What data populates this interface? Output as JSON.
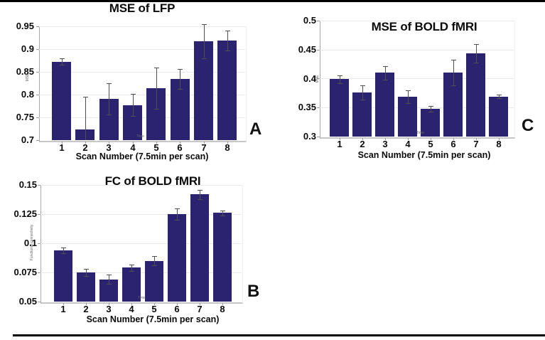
{
  "figure": {
    "background": "#ffffff",
    "top_border_color": "#000000",
    "bottom_border_color": "#000000"
  },
  "colors": {
    "bar": "#2b2370",
    "error_bar": "#4f4f4f",
    "grid": "#e9e9e9",
    "axis": "#a9a9a9",
    "text": "#0a0a0a",
    "tiny_text": "#666666"
  },
  "chart_data": [
    {
      "id": "mse-lfp",
      "type": "bar",
      "panel_letter": "A",
      "title": "MSE of LFP",
      "xlabel": "Scan Number (7.5min per scan)",
      "xlabel_small": "Time",
      "ylabel_small": "MSE",
      "categories": [
        "1",
        "2",
        "3",
        "4",
        "5",
        "6",
        "7",
        "8"
      ],
      "values": [
        0.872,
        0.723,
        0.791,
        0.777,
        0.814,
        0.834,
        0.917,
        0.919
      ],
      "errors": [
        0.007,
        0.072,
        0.034,
        0.024,
        0.046,
        0.022,
        0.037,
        0.022
      ],
      "ylim": [
        0.7,
        0.95
      ],
      "yticks": [
        0.95,
        0.9,
        0.85,
        0.8,
        0.75,
        0.7
      ],
      "ytick_labels": [
        "0.95",
        "0.9",
        "0.85",
        "0.8",
        "0.75",
        "0.7"
      ],
      "grid": true,
      "legend": false
    },
    {
      "id": "mse-bold-fmri",
      "type": "bar",
      "panel_letter": "C",
      "title": "MSE of BOLD fMRI",
      "xlabel": "Scan Number (7.5min per scan)",
      "xlabel_small": "Time",
      "ylabel_small": "MSE",
      "categories": [
        "1",
        "2",
        "3",
        "4",
        "5",
        "6",
        "7",
        "8"
      ],
      "values": [
        0.399,
        0.376,
        0.41,
        0.369,
        0.348,
        0.41,
        0.444,
        0.369
      ],
      "errors": [
        0.007,
        0.012,
        0.012,
        0.011,
        0.005,
        0.022,
        0.016,
        0.003
      ],
      "ylim": [
        0.3,
        0.5
      ],
      "yticks": [
        0.5,
        0.45,
        0.4,
        0.35,
        0.3
      ],
      "ytick_labels": [
        "0.5",
        "0.45",
        "0.4",
        "0.35",
        "0.3"
      ],
      "grid": true,
      "legend": false
    },
    {
      "id": "fc-bold-fmri",
      "type": "bar",
      "panel_letter": "B",
      "title": "FC of BOLD fMRI",
      "xlabel": "Scan Number (7.5min per scan)",
      "xlabel_small": "Time",
      "ylabel_small": "Functional connectivity",
      "categories": [
        "1",
        "2",
        "3",
        "4",
        "5",
        "6",
        "7",
        "8"
      ],
      "values": [
        0.094,
        0.075,
        0.069,
        0.079,
        0.085,
        0.125,
        0.142,
        0.126
      ],
      "errors": [
        0.0025,
        0.003,
        0.004,
        0.003,
        0.004,
        0.005,
        0.004,
        0.002
      ],
      "ylim": [
        0.05,
        0.15
      ],
      "yticks": [
        0.15,
        0.125,
        0.1,
        0.075,
        0.05
      ],
      "ytick_labels": [
        "0.15",
        "0.125",
        "0.1",
        "0.075",
        "0.05"
      ],
      "grid": true,
      "legend": false
    }
  ]
}
